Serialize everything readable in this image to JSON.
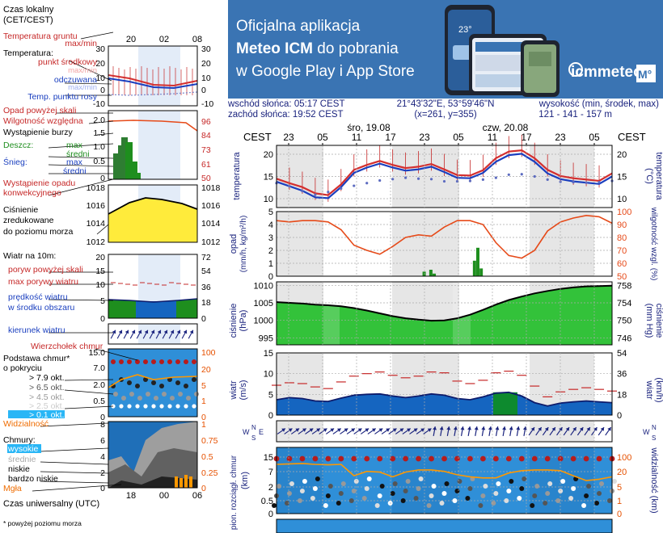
{
  "banner": {
    "line1": "Oficjalna aplikacja",
    "line2_pre": "Meteo ICM",
    "line2_post": " do pobrania",
    "line3": "w Google Play i App Store",
    "logo_text": "icmmeteo",
    "badge": "M°",
    "phone_temp": "23°"
  },
  "info": {
    "sunrise": "wschód słońca: 05:17 CEST",
    "sunset": "zachód słońca: 19:52 CEST",
    "coords": "21°43'32\"E, 53°59'46\"N",
    "grid": "(x=261,  y=355)",
    "height_label": "wysokość (min, środek, max)",
    "height_values": "121 - 141 - 157 m"
  },
  "legend": {
    "local_time": "Czas lokalny",
    "local_time2": "(CET/CEST)",
    "hours_top": [
      "20",
      "02",
      "08"
    ],
    "ground_temp": "Temperatura gruntu",
    "max_min": "max/min",
    "temperature": "Temperatura:",
    "mid_point": "punkt środkowy",
    "max_min2": "max/min",
    "felt": "odczuwana",
    "max_min3": "max/min",
    "dew": "Temp. punktu rosy",
    "precip_thr": "Opad powyżej skali",
    "humidity": "Wilgotność względna",
    "storm": "Wystąpienie burzy",
    "rain": "Deszcz:",
    "max": "max",
    "mean": "średni",
    "snow": "Śnieg:",
    "max2": "max",
    "mean2": "średni",
    "conv": "Wystąpienie opadu",
    "conv2": "konwekcyjnego",
    "pressure1": "Ciśnienie",
    "pressure2": "zredukowane",
    "pressure3": "do poziomu morza",
    "wind10": "Wiatr na 10m:",
    "gust_thr": "poryw powyżej skali",
    "gust_max": "max porywy wiatru",
    "wind_speed": "prędkość wiatru",
    "wind_speed2": "w środku obszaru",
    "wind_dir": "kierunek wiatru",
    "cloud_top": "Wierzchołek chmur",
    "cloud_base": "Podstawa chmur*",
    "cloud_base2": "o pokryciu",
    "okt1": "> 7.9 okt.",
    "okt2": "> 6.5 okt.",
    "okt3": "> 4.5 okt.",
    "okt4": "> 2.5 okt.",
    "okt5": "> 0.1 okt.",
    "visibility": "Widzialność",
    "clouds": "Chmury:",
    "cl_high": "wysokie",
    "cl_mid": "średnie",
    "cl_low": "niskie",
    "cl_vlow": "bardzo niskie",
    "fog": "Mgła",
    "utc": "Czas uniwersalny (UTC)",
    "hours_bottom": [
      "18",
      "00",
      "06"
    ],
    "footnote": "* powyżej poziomu morza",
    "temp_ticks_l": [
      "30",
      "20",
      "10",
      "0",
      "-10"
    ],
    "temp_ticks_r": [
      "30",
      "20",
      "10",
      "0",
      "-10"
    ],
    "hum_ticks_l": [
      "2.0",
      "1.5",
      "1.0",
      "0.5",
      "0"
    ],
    "hum_ticks_r": [
      "96",
      "84",
      "73",
      "61",
      "50"
    ],
    "pres_ticks_l": [
      "1018",
      "1016",
      "1014",
      "1012"
    ],
    "pres_ticks_r": [
      "1018",
      "1016",
      "1014",
      "1012"
    ],
    "wind_ticks_l": [
      "20",
      "15",
      "10",
      "5",
      "0"
    ],
    "wind_ticks_r": [
      "72",
      "54",
      "36",
      "18",
      "0"
    ],
    "cloud_ticks_l": [
      "15.0",
      "7.0",
      "2.0",
      "0.5",
      "0"
    ],
    "cloud_ticks_r": [
      "100",
      "20",
      "5",
      "1",
      "0"
    ],
    "cl2_ticks_l": [
      "8",
      "6",
      "4",
      "2",
      "0"
    ],
    "cl2_ticks_r": [
      "1",
      "0.75",
      "0.5",
      "0.25",
      "0"
    ]
  },
  "chart_data": [
    {
      "type": "line",
      "title": "temperatura",
      "ylabel": "(°C)",
      "x_hours_cest": [
        "23",
        "05",
        "11",
        "17",
        "23",
        "05",
        "11",
        "17",
        "23",
        "05"
      ],
      "day_labels": [
        "śro, 19.08",
        "czw, 20.08"
      ],
      "ylim": [
        8,
        22
      ],
      "yticks": [
        10,
        15,
        20
      ],
      "series": [
        {
          "name": "temperatura",
          "values": [
            14.5,
            13.5,
            12.6,
            11.2,
            10.8,
            13.2,
            16.5,
            17.6,
            18.5,
            17.6,
            16.9,
            17.2,
            17.8,
            16.6,
            15.3,
            15.2,
            16.4,
            19.1,
            20.6,
            20.9,
            19.1,
            16.5,
            15.1,
            14.6,
            14.3,
            14.0,
            15.7
          ]
        },
        {
          "name": "odczuwana",
          "values": [
            13.8,
            12.8,
            11.8,
            10.3,
            10.1,
            12.6,
            15.8,
            17.0,
            17.9,
            17.0,
            16.3,
            16.6,
            17.2,
            16.0,
            14.7,
            14.6,
            15.8,
            18.3,
            19.8,
            20.1,
            18.3,
            15.7,
            14.4,
            13.9,
            13.6,
            13.3,
            15.0
          ]
        },
        {
          "name": "temp. punktu rosy",
          "values": [
            13.5,
            12.8,
            11.7,
            10.9,
            11.5,
            12.3,
            12.9,
            13.5,
            14.1,
            14.4,
            14.7,
            14.5,
            14.4,
            13.9,
            13.9,
            14.0,
            14.3,
            14.7,
            15.4,
            15.5,
            15.0,
            14.3,
            13.8,
            13.7,
            13.6,
            13.7,
            14.0
          ]
        }
      ]
    },
    {
      "type": "bar",
      "title": "opad",
      "ylabel": "(mm/h, kg/m²/h)",
      "y2label": "wilgotność wzgl. (%)",
      "ylim": [
        0,
        5
      ],
      "y2lim": [
        50,
        100
      ],
      "yticks": [
        0,
        1,
        2,
        3,
        4,
        5
      ],
      "y2ticks": [
        50,
        60,
        70,
        80,
        90,
        100
      ],
      "precip_bars": [
        {
          "x": 0.44,
          "value": 0.35
        },
        {
          "x": 0.46,
          "value": 0.5
        },
        {
          "x": 0.47,
          "value": 0.2
        },
        {
          "x": 0.59,
          "value": 1.2
        },
        {
          "x": 0.6,
          "value": 2.2
        },
        {
          "x": 0.61,
          "value": 0.6
        }
      ],
      "humidity": [
        93,
        92,
        93,
        93,
        92,
        86,
        74,
        70,
        67,
        73,
        80,
        82,
        81,
        88,
        93,
        93,
        90,
        76,
        66,
        64,
        70,
        85,
        92,
        95,
        97,
        96,
        91
      ]
    },
    {
      "type": "area",
      "title": "ciśnienie",
      "ylabel": "(hPa)",
      "y2label": "(mm Hg)",
      "ylim": [
        993,
        1011
      ],
      "yticks": [
        995,
        1000,
        1005,
        1010
      ],
      "y2ticks": [
        746,
        750,
        754,
        758
      ],
      "values": [
        1005.2,
        1005.0,
        1004.8,
        1004.5,
        1004.3,
        1004.0,
        1003.5,
        1002.8,
        1002.0,
        1001.2,
        1000.6,
        1000.2,
        999.9,
        1000.0,
        1000.6,
        1001.6,
        1003.0,
        1004.5,
        1005.8,
        1006.8,
        1007.7,
        1008.4,
        1009.0,
        1009.4,
        1009.7,
        1009.8,
        1009.9
      ]
    },
    {
      "type": "area",
      "title": "wiatr",
      "ylabel": "(m/s)",
      "y2label": "(km/h)",
      "ylim": [
        0,
        15
      ],
      "yticks": [
        0,
        5,
        10,
        15
      ],
      "y2ticks": [
        0,
        18,
        36,
        54
      ],
      "speed": [
        3.7,
        4.2,
        4.0,
        3.4,
        3.3,
        4.1,
        4.8,
        5.0,
        5.1,
        4.6,
        4.2,
        4.6,
        5.1,
        4.8,
        4.0,
        3.7,
        4.4,
        5.3,
        5.5,
        4.6,
        3.0,
        2.2,
        2.9,
        3.2,
        3.4,
        3.2,
        3.0
      ],
      "gusts": [
        7.2,
        7.8,
        7.6,
        6.8,
        6.4,
        8.0,
        9.4,
        10.0,
        10.4,
        9.6,
        9.0,
        9.4,
        10.4,
        10.2,
        8.2,
        7.6,
        8.4,
        10.2,
        10.6,
        9.6,
        7.0,
        4.4,
        5.6,
        6.2,
        6.6,
        6.2,
        5.8
      ]
    },
    {
      "type": "scatter",
      "title": "pion. rozciągł. chmur",
      "ylabel": "(km)",
      "y2label": "widzialność (km)",
      "yticks": [
        0,
        0.5,
        2.0,
        7.0,
        15.0
      ],
      "y2ticks": [
        0,
        1,
        5,
        20,
        100
      ],
      "visibility_km": [
        30,
        31,
        32,
        30,
        29,
        30,
        13,
        18,
        17,
        12,
        17,
        20,
        20,
        18,
        14,
        12,
        11,
        11,
        16,
        19,
        20,
        20,
        19,
        13,
        9,
        10,
        12
      ]
    }
  ]
}
